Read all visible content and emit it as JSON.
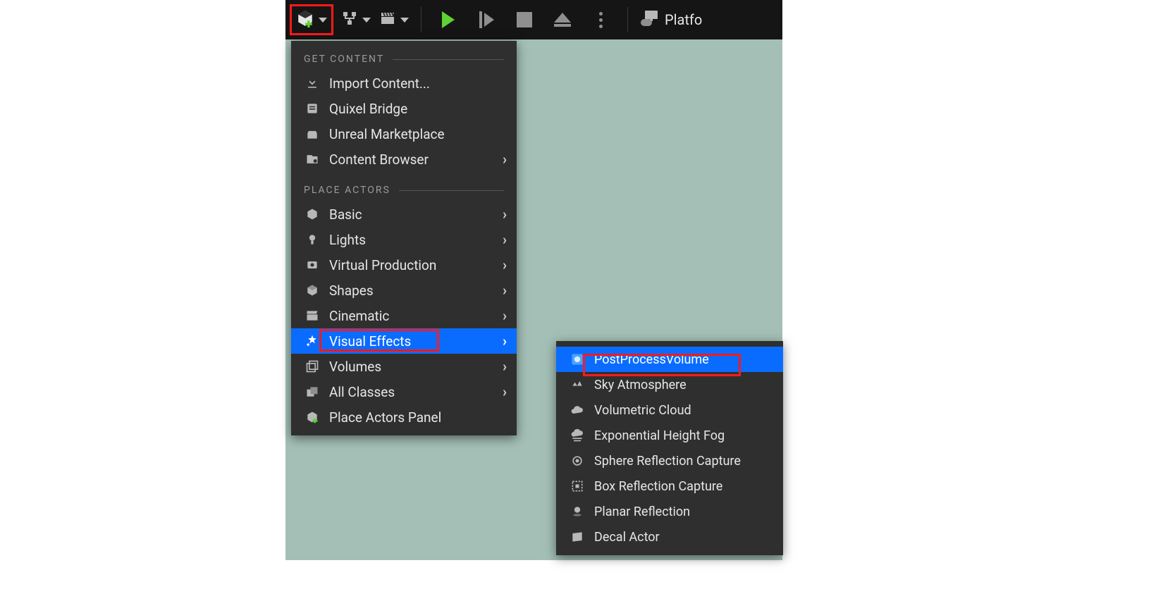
{
  "colors": {
    "toolbar_bg": "#151515",
    "menu_bg": "#2f2f2f",
    "highlight_bg": "#0a6cff",
    "annotation_border": "#ff1a1a",
    "viewport_bg": "#a3bfb6",
    "text": "#e6e6e6",
    "muted": "#9a9a9a",
    "play_green": "#5fd233"
  },
  "toolbar": {
    "buttons": [
      {
        "name": "add-content-button",
        "icon": "cube-plus-icon",
        "annotated": true,
        "has_caret": true
      },
      {
        "name": "blueprint-button",
        "icon": "blueprint-icon",
        "has_caret": true
      },
      {
        "name": "cinematics-button",
        "icon": "clapper-icon",
        "has_caret": true
      }
    ],
    "play": {
      "name": "play-button"
    },
    "step": {
      "name": "step-button"
    },
    "stop": {
      "name": "stop-button"
    },
    "eject": {
      "name": "eject-button"
    },
    "kebab": {
      "name": "play-options-button"
    },
    "platforms": {
      "label": "Platfo",
      "icon": "gamepad-monitor-icon"
    }
  },
  "menu": {
    "sections": [
      {
        "header": "GET CONTENT",
        "items": [
          {
            "label": "Import Content...",
            "icon": "import-icon",
            "submenu": false
          },
          {
            "label": "Quixel Bridge",
            "icon": "bridge-icon",
            "submenu": false
          },
          {
            "label": "Unreal Marketplace",
            "icon": "marketplace-icon",
            "submenu": false
          },
          {
            "label": "Content Browser",
            "icon": "content-browser-icon",
            "submenu": true
          }
        ]
      },
      {
        "header": "PLACE ACTORS",
        "items": [
          {
            "label": "Basic",
            "icon": "basic-icon",
            "submenu": true
          },
          {
            "label": "Lights",
            "icon": "lights-icon",
            "submenu": true
          },
          {
            "label": "Virtual Production",
            "icon": "virtual-production-icon",
            "submenu": true
          },
          {
            "label": "Shapes",
            "icon": "shapes-icon",
            "submenu": true
          },
          {
            "label": "Cinematic",
            "icon": "cinematic-icon",
            "submenu": true
          },
          {
            "label": "Visual Effects",
            "icon": "visual-effects-icon",
            "submenu": true,
            "highlight": true,
            "annotated": true,
            "redbox_width": 170
          },
          {
            "label": "Volumes",
            "icon": "volumes-icon",
            "submenu": true
          },
          {
            "label": "All Classes",
            "icon": "all-classes-icon",
            "submenu": true
          },
          {
            "label": "Place Actors Panel",
            "icon": "place-actors-panel-icon",
            "submenu": false
          }
        ]
      }
    ]
  },
  "submenu": {
    "items": [
      {
        "label": "PostProcessVolume",
        "icon": "postprocess-icon",
        "highlight": true,
        "annotated": true,
        "redbox_width": 224
      },
      {
        "label": "Sky Atmosphere",
        "icon": "sky-atmosphere-icon"
      },
      {
        "label": "Volumetric Cloud",
        "icon": "volumetric-cloud-icon"
      },
      {
        "label": "Exponential Height Fog",
        "icon": "fog-icon"
      },
      {
        "label": "Sphere Reflection Capture",
        "icon": "sphere-reflection-icon"
      },
      {
        "label": "Box Reflection Capture",
        "icon": "box-reflection-icon"
      },
      {
        "label": "Planar Reflection",
        "icon": "planar-reflection-icon"
      },
      {
        "label": "Decal Actor",
        "icon": "decal-icon"
      }
    ]
  }
}
